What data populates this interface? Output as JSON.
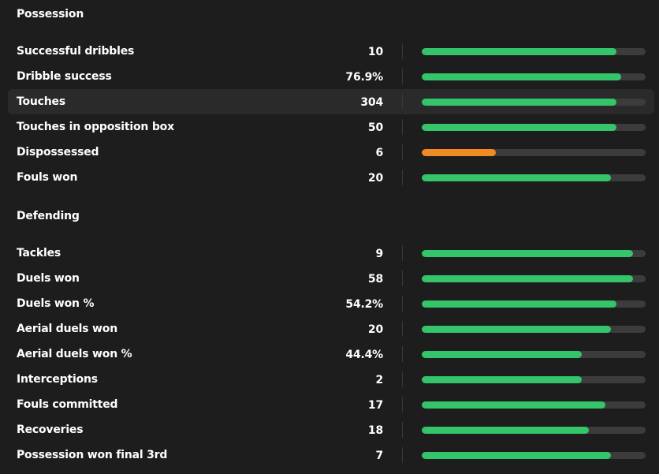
{
  "colors": {
    "background": "#1d1d1d",
    "good": "#34c46a",
    "warning": "#f08a24",
    "track": "#3c3c3c"
  },
  "sections": [
    {
      "title": "Possession",
      "stats": [
        {
          "label": "Successful dribbles",
          "value": "10",
          "fill": 0.87,
          "status": "good"
        },
        {
          "label": "Dribble success",
          "value": "76.9%",
          "fill": 0.89,
          "status": "good"
        },
        {
          "label": "Touches",
          "value": "304",
          "fill": 0.87,
          "status": "good",
          "highlight": true
        },
        {
          "label": "Touches in opposition box",
          "value": "50",
          "fill": 0.87,
          "status": "good"
        },
        {
          "label": "Dispossessed",
          "value": "6",
          "fill": 0.33,
          "status": "warning"
        },
        {
          "label": "Fouls won",
          "value": "20",
          "fill": 0.845,
          "status": "good"
        }
      ]
    },
    {
      "title": "Defending",
      "stats": [
        {
          "label": "Tackles",
          "value": "9",
          "fill": 0.945,
          "status": "good"
        },
        {
          "label": "Duels won",
          "value": "58",
          "fill": 0.945,
          "status": "good"
        },
        {
          "label": "Duels won %",
          "value": "54.2%",
          "fill": 0.87,
          "status": "good"
        },
        {
          "label": "Aerial duels won",
          "value": "20",
          "fill": 0.845,
          "status": "good"
        },
        {
          "label": "Aerial duels won %",
          "value": "44.4%",
          "fill": 0.715,
          "status": "good"
        },
        {
          "label": "Interceptions",
          "value": "2",
          "fill": 0.715,
          "status": "good"
        },
        {
          "label": "Fouls committed",
          "value": "17",
          "fill": 0.82,
          "status": "good"
        },
        {
          "label": "Recoveries",
          "value": "18",
          "fill": 0.745,
          "status": "good"
        },
        {
          "label": "Possession won final 3rd",
          "value": "7",
          "fill": 0.845,
          "status": "good"
        }
      ]
    }
  ]
}
